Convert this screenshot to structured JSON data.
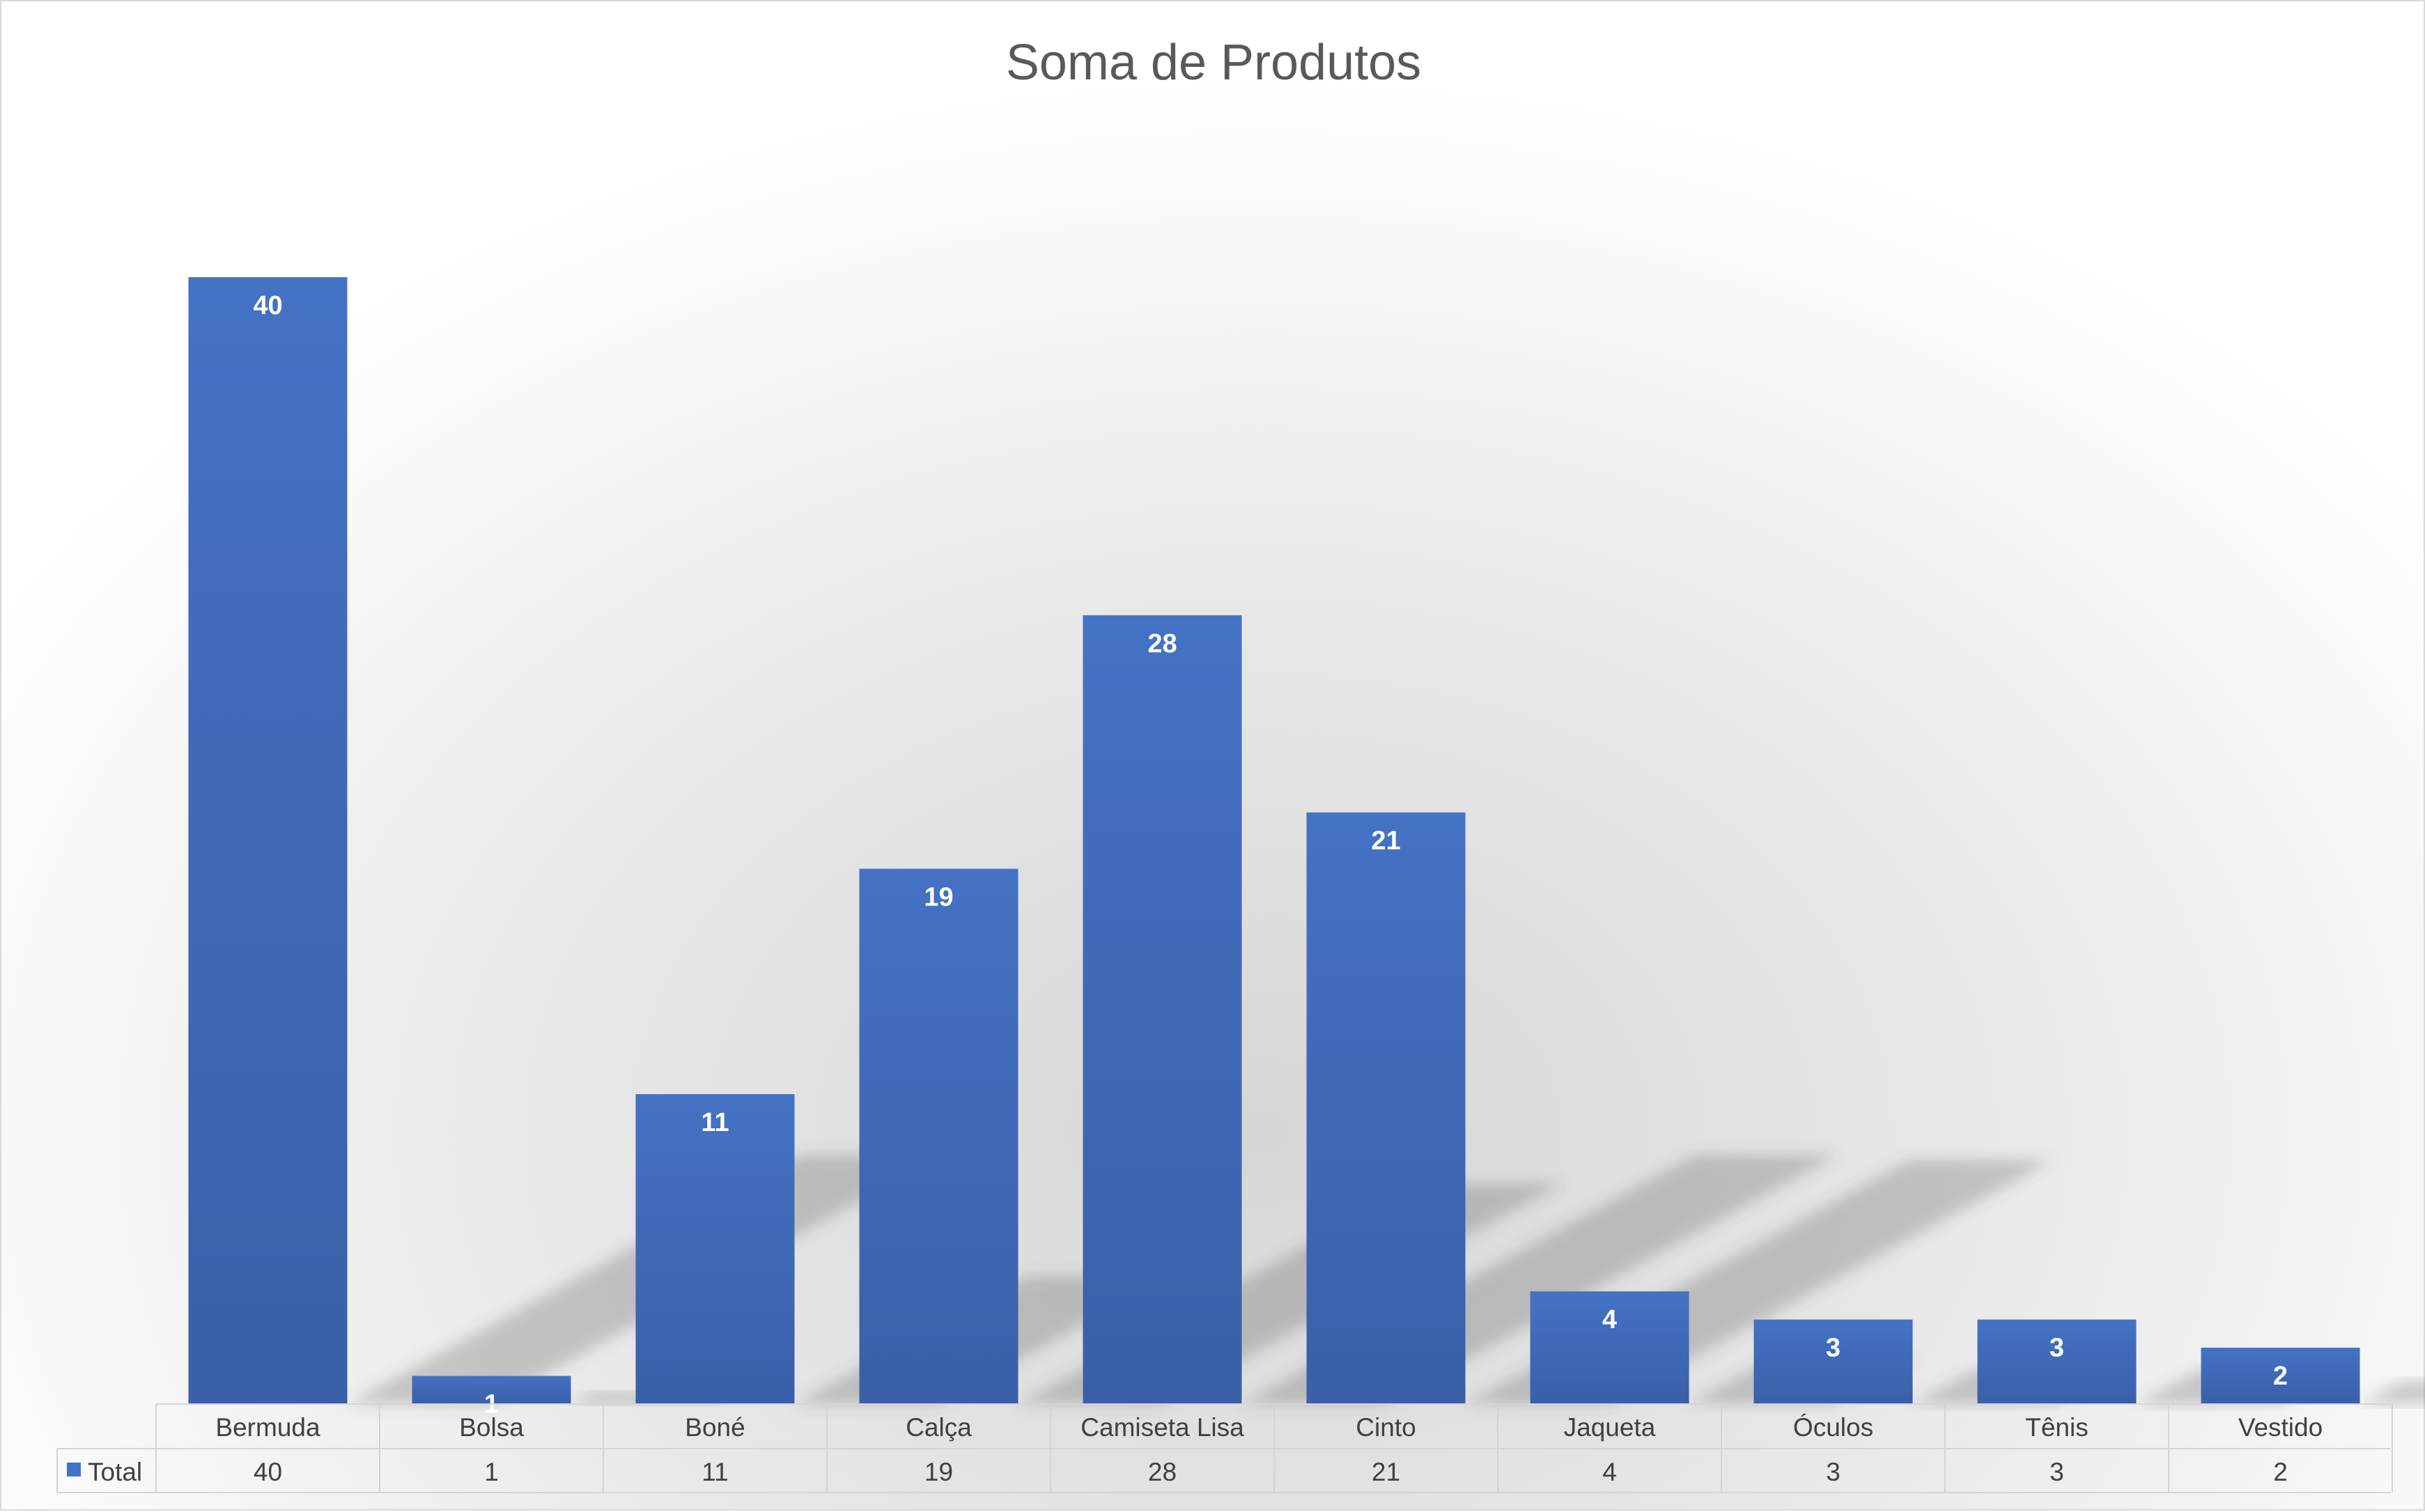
{
  "chart_data": {
    "type": "bar",
    "title": "Soma de Produtos",
    "categories": [
      "Bermuda",
      "Bolsa",
      "Boné",
      "Calça",
      "Camiseta Lisa",
      "Cinto",
      "Jaqueta",
      "Óculos",
      "Tênis",
      "Vestido"
    ],
    "series": [
      {
        "name": "Total",
        "values": [
          40,
          1,
          11,
          19,
          28,
          21,
          4,
          3,
          3,
          2
        ],
        "color": "#4472c4"
      }
    ],
    "ylim": [
      0,
      45
    ],
    "data_labels": true,
    "data_table": true,
    "legend_key_in_table": true,
    "grid": false
  }
}
